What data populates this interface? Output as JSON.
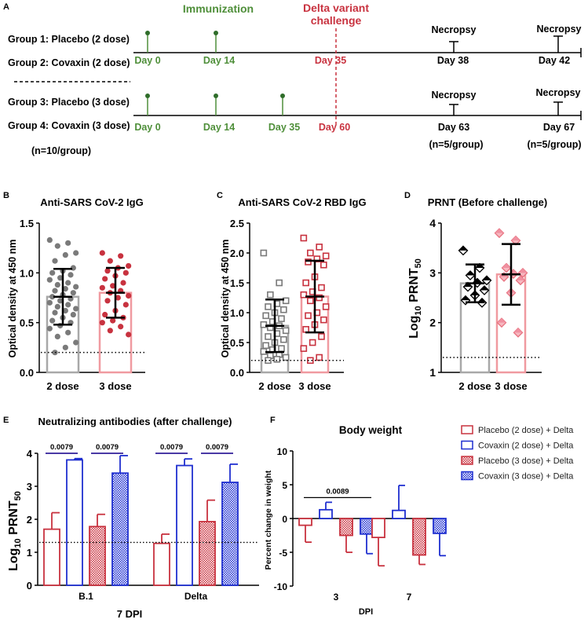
{
  "colors": {
    "green": "#4f8f3a",
    "red": "#c8323f",
    "grey_bar": "#a8a8a8",
    "grey_point": "#7a7a7a",
    "pink_bar": "#f09aa0",
    "blue": "#1f2fd0",
    "black": "#000000"
  },
  "panel_a": {
    "letter": "A",
    "immunization_label": "Immunization",
    "challenge_label_line1": "Delta variant",
    "challenge_label_line2": "challenge",
    "groups": [
      "Group 1: Placebo (2 dose)",
      "Group 2: Covaxin (2 dose)",
      "Group 3: Placebo (3 dose)",
      "Group 4: Covaxin (3 dose)"
    ],
    "n_total": "(n=10/group)",
    "timeline1": {
      "dose_days": [
        "Day 0",
        "Day 14"
      ],
      "challenge_day": "Day 35",
      "necropsy_label": "Necropsy",
      "necropsy_days": [
        "Day 38",
        "Day 42"
      ]
    },
    "timeline2": {
      "dose_days": [
        "Day 0",
        "Day 14",
        "Day 35"
      ],
      "challenge_day": "Day 60",
      "necropsy_label": "Necropsy",
      "necropsy_days": [
        "Day 63",
        "Day 67"
      ],
      "n_necropsy": [
        "(n=5/group)",
        "(n=5/group)"
      ]
    }
  },
  "chart_data": [
    {
      "id": "B",
      "type": "bar",
      "title": "Anti-SARS CoV-2 IgG",
      "ylabel": "Optical density at 450 nm",
      "categories": [
        "2 dose",
        "3 dose"
      ],
      "ylim": [
        0,
        1.5
      ],
      "yticks": [
        "0.0",
        "0.5",
        "1.0",
        "1.5"
      ],
      "means": [
        0.76,
        0.8
      ],
      "sd": [
        0.28,
        0.25
      ],
      "cutoff": 0.2,
      "points": [
        [
          1.33,
          1.3,
          1.27,
          1.2,
          1.18,
          1.12,
          1.05,
          1.02,
          1.0,
          0.98,
          0.95,
          0.93,
          0.9,
          0.88,
          0.86,
          0.84,
          0.82,
          0.8,
          0.78,
          0.76,
          0.74,
          0.72,
          0.7,
          0.68,
          0.66,
          0.64,
          0.62,
          0.6,
          0.58,
          0.55,
          0.52,
          0.5,
          0.47,
          0.44,
          0.4,
          0.36,
          0.3,
          0.25,
          0.2
        ],
        [
          1.2,
          1.17,
          1.12,
          1.07,
          1.05,
          1.02,
          1.0,
          0.97,
          0.94,
          0.9,
          0.87,
          0.85,
          0.82,
          0.8,
          0.77,
          0.75,
          0.72,
          0.68,
          0.62,
          0.58,
          0.55,
          0.52,
          0.5,
          0.46,
          0.42,
          0.38
        ]
      ]
    },
    {
      "id": "C",
      "type": "bar",
      "title": "Anti-SARS CoV-2 RBD IgG",
      "ylabel": "Optical density at 450 nm",
      "categories": [
        "2 dose",
        "3 dose"
      ],
      "ylim": [
        0,
        2.5
      ],
      "yticks": [
        "0.0",
        "0.5",
        "1.0",
        "1.5",
        "2.0",
        "2.5"
      ],
      "means": [
        0.78,
        1.27
      ],
      "sd": [
        0.44,
        0.6
      ],
      "cutoff": 0.2,
      "points": [
        [
          2.0,
          1.5,
          1.3,
          1.2,
          1.15,
          1.1,
          1.05,
          1.0,
          0.95,
          0.9,
          0.85,
          0.8,
          0.78,
          0.75,
          0.7,
          0.65,
          0.6,
          0.55,
          0.5,
          0.45,
          0.4,
          0.38,
          0.35,
          0.3,
          0.28,
          0.25,
          0.22,
          0.2
        ],
        [
          2.25,
          2.1,
          2.0,
          1.95,
          1.9,
          1.85,
          1.8,
          1.6,
          1.5,
          1.42,
          1.35,
          1.3,
          1.25,
          1.2,
          1.1,
          1.0,
          0.95,
          0.88,
          0.8,
          0.72,
          0.6,
          0.5,
          0.4,
          0.25,
          0.2
        ]
      ]
    },
    {
      "id": "D",
      "type": "bar",
      "title": "PRNT (Before challenge)",
      "ylabel_main": "Log",
      "ylabel_sub1": "10",
      "ylabel_main2": " PRNT",
      "ylabel_sub2": "50",
      "categories": [
        "2 dose",
        "3 dose"
      ],
      "ylim": [
        1,
        4
      ],
      "yticks": [
        "1",
        "2",
        "3",
        "4"
      ],
      "means": [
        2.79,
        2.97
      ],
      "sd": [
        0.38,
        0.61
      ],
      "cutoff": 1.3,
      "points": [
        [
          3.45,
          3.1,
          2.95,
          2.85,
          2.8,
          2.72,
          2.65,
          2.55,
          2.45,
          2.4
        ],
        [
          3.8,
          3.65,
          3.1,
          3.0,
          2.98,
          2.92,
          2.85,
          2.6,
          2.0,
          1.8
        ]
      ]
    },
    {
      "id": "E",
      "type": "bar",
      "title": "Neutralizing antibodies (after challenge)",
      "ylabel_main": "Log",
      "ylabel_sub1": "10",
      "ylabel_main2": " PRNT",
      "ylabel_sub2": "50",
      "xlabel": "7 DPI",
      "categories": [
        "B.1",
        "Delta"
      ],
      "ylim": [
        0,
        4
      ],
      "yticks": [
        "0",
        "1",
        "2",
        "3",
        "4"
      ],
      "cutoff": 1.3,
      "series": [
        {
          "name": "Placebo (2 dose) + Delta",
          "values": [
            1.7,
            1.27
          ],
          "sd": [
            0.5,
            0.28
          ]
        },
        {
          "name": "Covaxin (2 dose) + Delta",
          "values": [
            3.8,
            3.63
          ],
          "sd": [
            0.04,
            0.2
          ]
        },
        {
          "name": "Placebo (3 dose) + Delta",
          "values": [
            1.78,
            1.93
          ],
          "sd": [
            0.37,
            0.65
          ]
        },
        {
          "name": "Covaxin (3 dose) + Delta",
          "values": [
            3.4,
            3.12
          ],
          "sd": [
            0.53,
            0.55
          ]
        }
      ],
      "pvalues": [
        "0.0079",
        "0.0079",
        "0.0079",
        "0.0079"
      ]
    },
    {
      "id": "F",
      "type": "bar",
      "title": "Body weight",
      "ylabel": "Percent change in weight",
      "xlabel": "DPI",
      "categories": [
        "3",
        "7"
      ],
      "ylim": [
        -10,
        10
      ],
      "yticks": [
        "10",
        "5",
        "0",
        "-5",
        "-10"
      ],
      "series": [
        {
          "name": "Placebo (2 dose) + Delta",
          "values": [
            -1.0,
            -2.8
          ],
          "sd": [
            2.5,
            4.2
          ]
        },
        {
          "name": "Covaxin (2 dose) + Delta",
          "values": [
            1.3,
            1.2
          ],
          "sd": [
            1.1,
            3.7
          ]
        },
        {
          "name": "Placebo (3 dose) + Delta",
          "values": [
            -2.5,
            -5.4
          ],
          "sd": [
            2.5,
            1.4
          ]
        },
        {
          "name": "Covaxin (3 dose) + Delta",
          "values": [
            -2.3,
            -2.2
          ],
          "sd": [
            2.9,
            3.3
          ]
        }
      ],
      "pvalue": "0.0089"
    }
  ]
}
